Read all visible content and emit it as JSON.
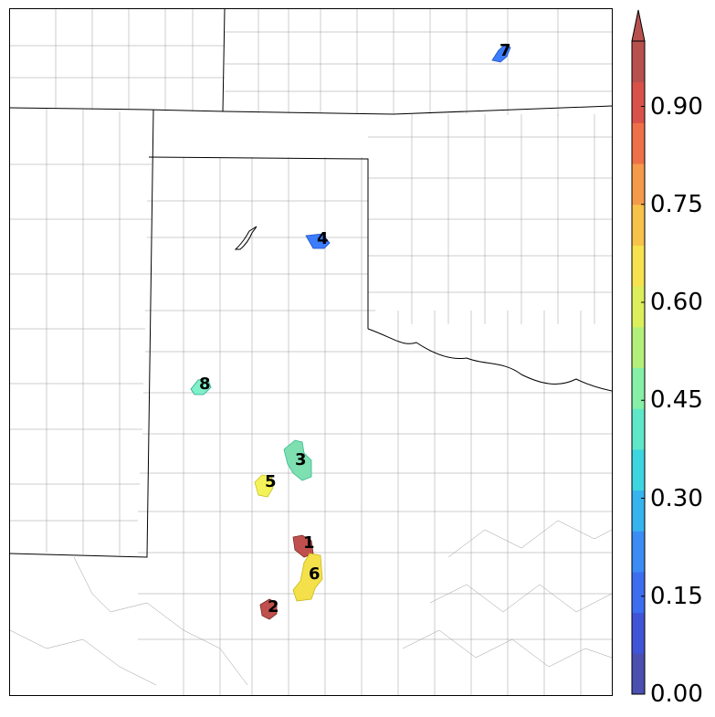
{
  "map": {
    "cells": [
      {
        "id": "1",
        "label": "1",
        "value": 0.95,
        "color": "#c0504d"
      },
      {
        "id": "2",
        "label": "2",
        "value": 0.95,
        "color": "#c0504d"
      },
      {
        "id": "3",
        "label": "3",
        "value": 0.45,
        "color": "#7ee0b0"
      },
      {
        "id": "4",
        "label": "4",
        "value": 0.2,
        "color": "#3b7dff"
      },
      {
        "id": "5",
        "label": "5",
        "value": 0.63,
        "color": "#f4f25a"
      },
      {
        "id": "6",
        "label": "6",
        "value": 0.68,
        "color": "#f4e04a"
      },
      {
        "id": "7",
        "label": "7",
        "value": 0.2,
        "color": "#3b7dff"
      },
      {
        "id": "8",
        "label": "8",
        "value": 0.42,
        "color": "#7ff0c8"
      }
    ]
  },
  "colorbar": {
    "min": 0.0,
    "max": 1.0,
    "extend": "max",
    "ticks": [
      "0.00",
      "0.15",
      "0.30",
      "0.45",
      "0.60",
      "0.75",
      "0.90"
    ],
    "tick_values": [
      0.0,
      0.15,
      0.3,
      0.45,
      0.6,
      0.75,
      0.9
    ],
    "colors": [
      "#4a4fb0",
      "#3f54d6",
      "#3d6ef0",
      "#3b8cf5",
      "#36b4ee",
      "#3cd5e0",
      "#5fe8c8",
      "#86f0a6",
      "#b3f07a",
      "#dcef5a",
      "#f6e24e",
      "#f7c24a",
      "#f59a4a",
      "#ee7048",
      "#d9524a",
      "#b8504e"
    ]
  }
}
